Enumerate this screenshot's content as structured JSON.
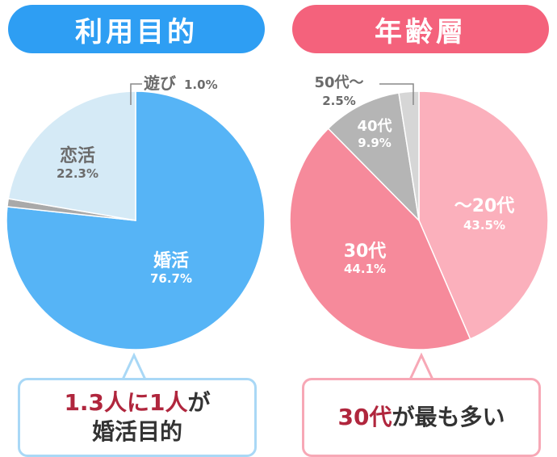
{
  "chart_data": [
    {
      "type": "pie",
      "title": "利用目的",
      "slices": [
        {
          "label": "婚活",
          "value": 76.7,
          "value_label": "76.7%",
          "color": "#56b4f6"
        },
        {
          "label": "遊び",
          "value": 1.0,
          "value_label": "1.0%",
          "color": "#a9a9a9"
        },
        {
          "label": "恋活",
          "value": 22.3,
          "value_label": "22.3%",
          "color": "#d5eaf6"
        }
      ],
      "callout": {
        "highlight": "1.3人に1人",
        "rest": "が",
        "line2": "婚活目的"
      }
    },
    {
      "type": "pie",
      "title": "年齢層",
      "slices": [
        {
          "label": "〜20代",
          "value": 43.5,
          "value_label": "43.5%",
          "color": "#fbb0bc"
        },
        {
          "label": "30代",
          "value": 44.1,
          "value_label": "44.1%",
          "color": "#f68a9b"
        },
        {
          "label": "40代",
          "value": 9.9,
          "value_label": "9.9%",
          "color": "#b5b5b5"
        },
        {
          "label": "50代〜",
          "value": 2.5,
          "value_label": "2.5%",
          "color": "#d6d6d6"
        }
      ],
      "callout": {
        "highlight": "30代",
        "rest": "が最も多い"
      }
    }
  ],
  "colors": {
    "left_pill": "#2e9ef3",
    "right_pill": "#f4627c"
  }
}
